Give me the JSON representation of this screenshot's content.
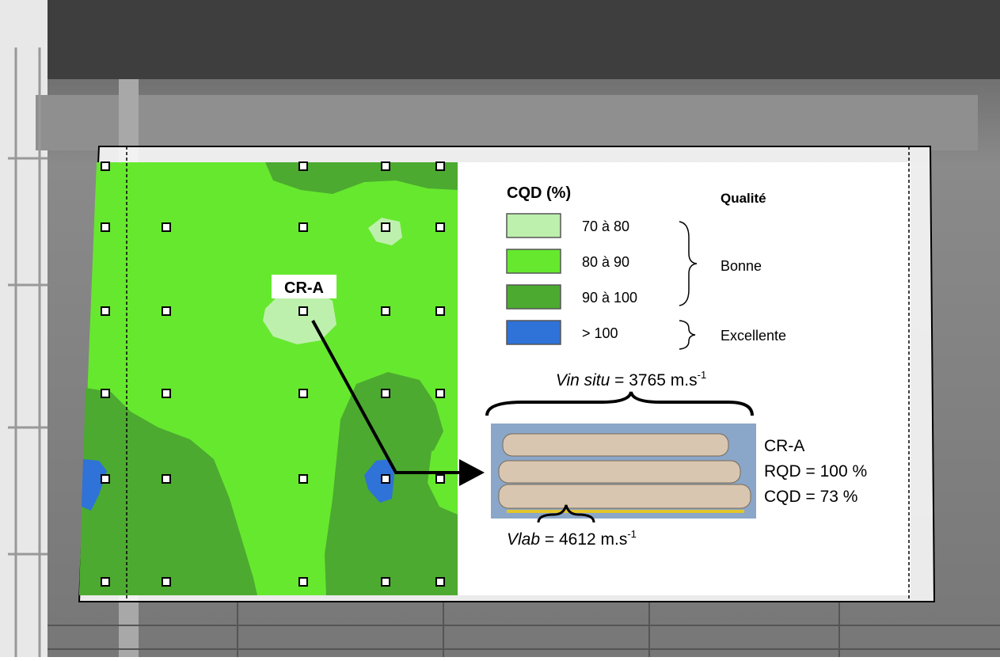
{
  "map": {
    "sample_label": "CR-A"
  },
  "legend": {
    "title": "CQD (%)",
    "quality_title": "Qualité",
    "items": [
      {
        "label": "70 à 80",
        "color": "#bdf0ad"
      },
      {
        "label": "80 à 90",
        "color": "#66e82e"
      },
      {
        "label": "90 à 100",
        "color": "#4caa30"
      },
      {
        "label": "> 100",
        "color": "#2f72d8"
      }
    ],
    "qualities": [
      "Bonne",
      "Excellente"
    ]
  },
  "core": {
    "vin_situ": {
      "symbol": "Vin situ",
      "text": " = 3765 m.s",
      "exponent": "-1"
    },
    "vlab": {
      "symbol": "Vlab",
      "text": " = 4612 m.s",
      "exponent": "-1"
    },
    "sample": "CR-A",
    "rqd": "RQD = 100 %",
    "cqd": "CQD = 73 %"
  }
}
